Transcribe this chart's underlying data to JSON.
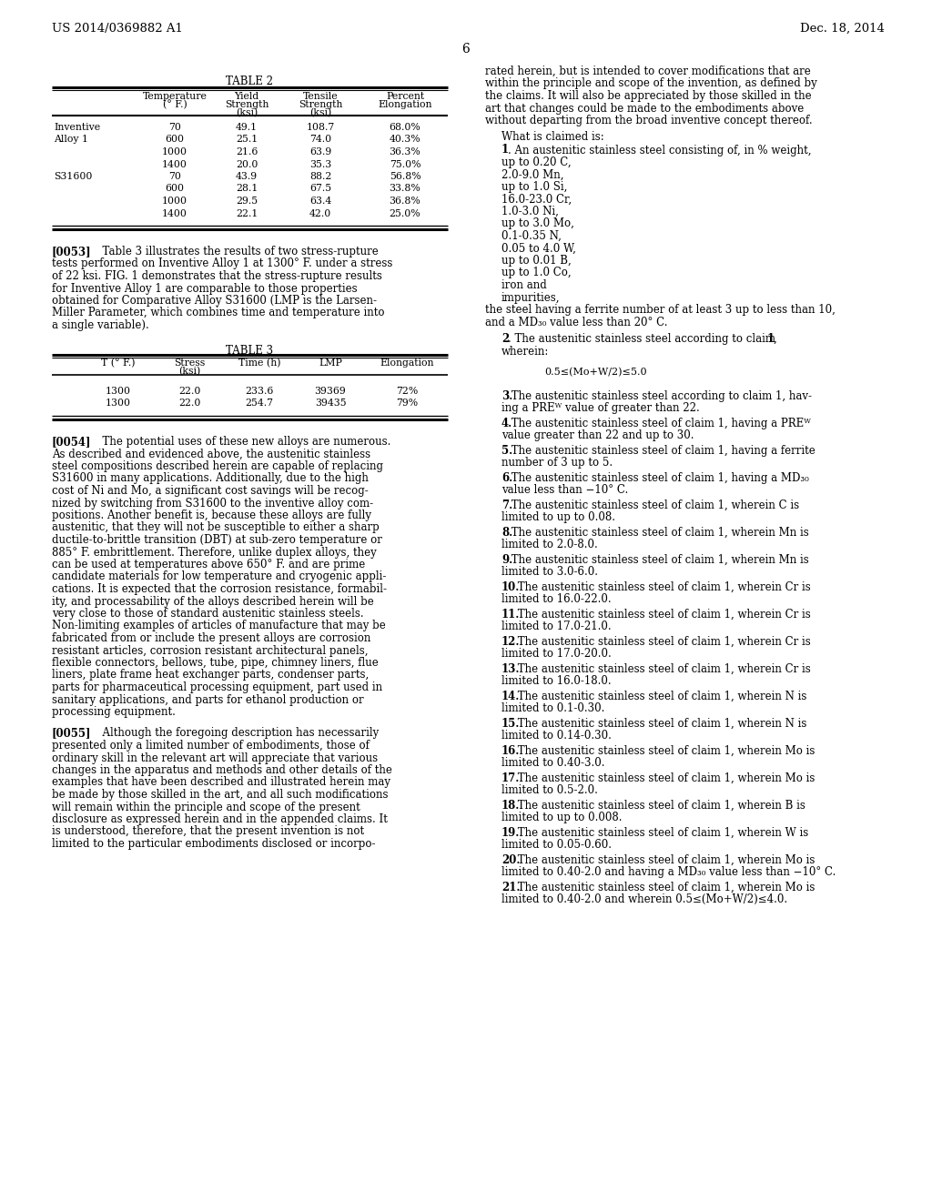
{
  "page_number": "6",
  "header_left": "US 2014/0369882 A1",
  "header_right": "Dec. 18, 2014",
  "background_color": "#ffffff",
  "text_color": "#000000",
  "font_family": "DejaVu Serif",
  "table2_title": "TABLE 2",
  "table3_title": "TABLE 3",
  "table2_rows": [
    [
      "Inventive",
      "70",
      "49.1",
      "108.7",
      "68.0%"
    ],
    [
      "Alloy 1",
      "600",
      "25.1",
      "74.0",
      "40.3%"
    ],
    [
      "",
      "1000",
      "21.6",
      "63.9",
      "36.3%"
    ],
    [
      "",
      "1400",
      "20.0",
      "35.3",
      "75.0%"
    ],
    [
      "S31600",
      "70",
      "43.9",
      "88.2",
      "56.8%"
    ],
    [
      "",
      "600",
      "28.1",
      "67.5",
      "33.8%"
    ],
    [
      "",
      "1000",
      "29.5",
      "63.4",
      "36.8%"
    ],
    [
      "",
      "1400",
      "22.1",
      "42.0",
      "25.0%"
    ]
  ],
  "table3_rows": [
    [
      "1300",
      "22.0",
      "233.6",
      "39369",
      "72%"
    ],
    [
      "1300",
      "22.0",
      "254.7",
      "39435",
      "79%"
    ]
  ]
}
